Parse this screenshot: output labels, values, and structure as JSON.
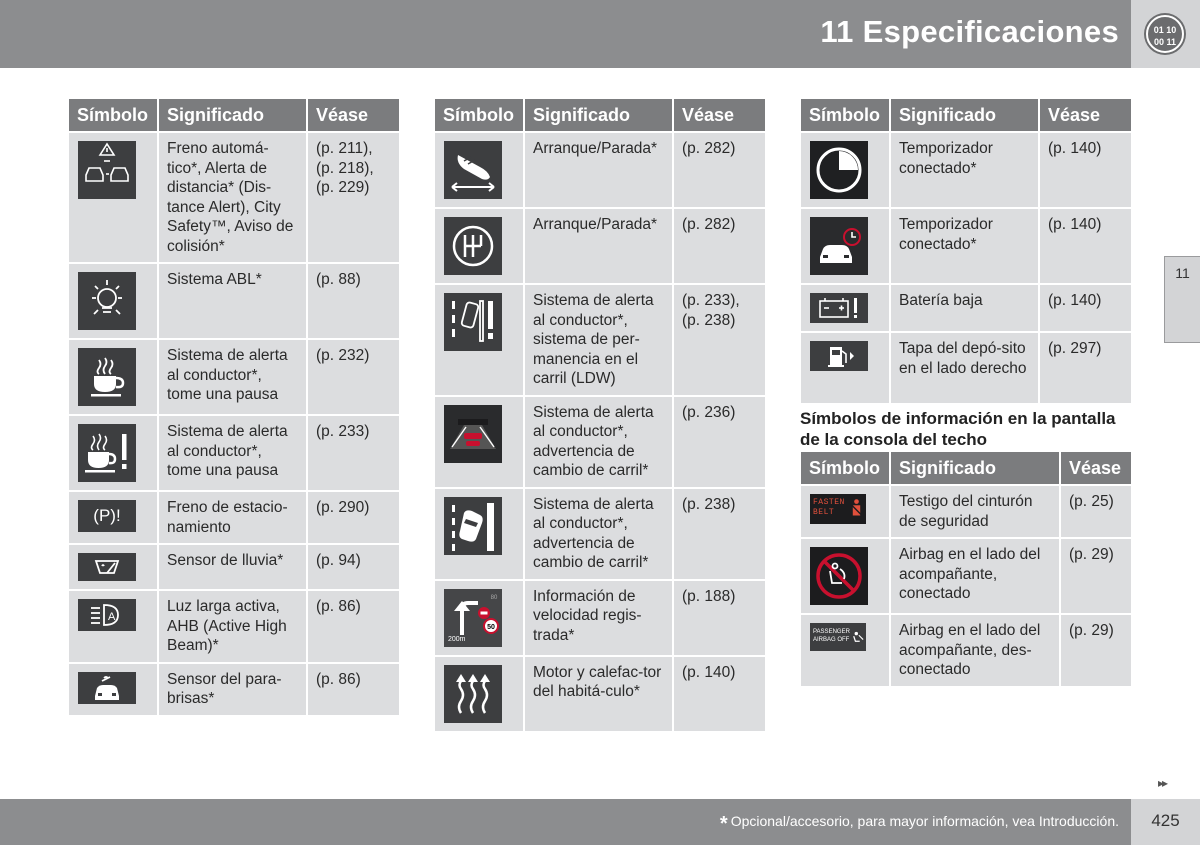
{
  "header": {
    "title": "11 Especificaciones",
    "badge_top": "01 10",
    "badge_bottom": "00 11"
  },
  "side_tab": "11",
  "columns": {
    "symbol": "Símbolo",
    "meaning": "Significado",
    "see": "Véase"
  },
  "table1": [
    {
      "icon": "automatic-brake-collision-icon",
      "meaning": "Freno automá-tico*, Alerta de distancia* (Dis-tance Alert), City Safety™, Aviso de colisión*",
      "see": "(p. 211), (p. 218), (p. 229)"
    },
    {
      "icon": "abl-light-icon",
      "meaning": "Sistema ABL*",
      "see": "(p. 88)"
    },
    {
      "icon": "coffee-cup-icon",
      "meaning": "Sistema de alerta al conductor*, tome una pausa",
      "see": "(p. 232)"
    },
    {
      "icon": "coffee-cup-warning-icon",
      "meaning": "Sistema de alerta al conductor*, tome una pausa",
      "see": "(p. 233)"
    },
    {
      "icon": "parking-brake-icon",
      "icon_text": "(P)!",
      "meaning": "Freno de estacio-namiento",
      "see": "(p. 290)"
    },
    {
      "icon": "rain-sensor-icon",
      "meaning": "Sensor de lluvia*",
      "see": "(p. 94)"
    },
    {
      "icon": "ahb-high-beam-icon",
      "meaning": "Luz larga activa, AHB (Active High Beam)*",
      "see": "(p. 86)"
    },
    {
      "icon": "windscreen-sensor-icon",
      "meaning": "Sensor del para-brisas*",
      "see": "(p. 86)"
    }
  ],
  "table2": [
    {
      "icon": "start-stop-foot-icon",
      "meaning": "Arranque/Parada*",
      "see": "(p. 282)"
    },
    {
      "icon": "start-stop-gear-icon",
      "meaning": "Arranque/Parada*",
      "see": "(p. 282)"
    },
    {
      "icon": "lane-departure-icon",
      "meaning": "Sistema de alerta al conductor*, sistema de per-manencia en el carril (LDW)",
      "see": "(p. 233), (p. 238)"
    },
    {
      "icon": "lane-change-road-icon",
      "meaning": "Sistema de alerta al conductor*, advertencia de cambio de carril*",
      "see": "(p. 236)"
    },
    {
      "icon": "lane-change-car-icon",
      "meaning": "Sistema de alerta al conductor*, advertencia de cambio de carril*",
      "see": "(p. 238)"
    },
    {
      "icon": "speed-info-icon",
      "icon_text": "200m",
      "icon_speed": "50",
      "icon_speed2": "80",
      "meaning": "Información de velocidad regis-trada*",
      "see": "(p. 188)"
    },
    {
      "icon": "cabin-heater-icon",
      "meaning": "Motor y calefac-tor del habitá-culo*",
      "see": "(p. 140)"
    }
  ],
  "table3": [
    {
      "icon": "timer-icon",
      "meaning": "Temporizador conectado*",
      "see": "(p. 140)"
    },
    {
      "icon": "timer-car-icon",
      "meaning": "Temporizador conectado*",
      "see": "(p. 140)"
    },
    {
      "icon": "battery-low-icon",
      "meaning": "Batería baja",
      "see": "(p. 140)"
    },
    {
      "icon": "fuel-cap-icon",
      "meaning": "Tapa del depó-sito en el lado derecho",
      "see": "(p. 297)"
    }
  ],
  "subheading": "Símbolos de información en la pantalla de la consola del techo",
  "table4": [
    {
      "icon": "fasten-belt-icon",
      "icon_text": "FASTEN BELT",
      "meaning": "Testigo del cinturón de seguridad",
      "see": "(p. 25)"
    },
    {
      "icon": "airbag-on-icon",
      "meaning": "Airbag en el lado del acompañante, conectado",
      "see": "(p. 29)"
    },
    {
      "icon": "airbag-off-icon",
      "icon_text": "PASSENGER AIRBAG OFF",
      "meaning": "Airbag en el lado del acompañante, des-conectado",
      "see": "(p. 29)"
    }
  ],
  "footer": {
    "star": "*",
    "note": "Opcional/accesorio, para mayor información, vea Introducción.",
    "page": "425"
  },
  "colors": {
    "header_gray": "#8c8d8f",
    "th_gray": "#7b7c7e",
    "cell_gray": "#dcdddf",
    "icon_dark": "#3d3e40",
    "alert_red": "#c8102e"
  }
}
